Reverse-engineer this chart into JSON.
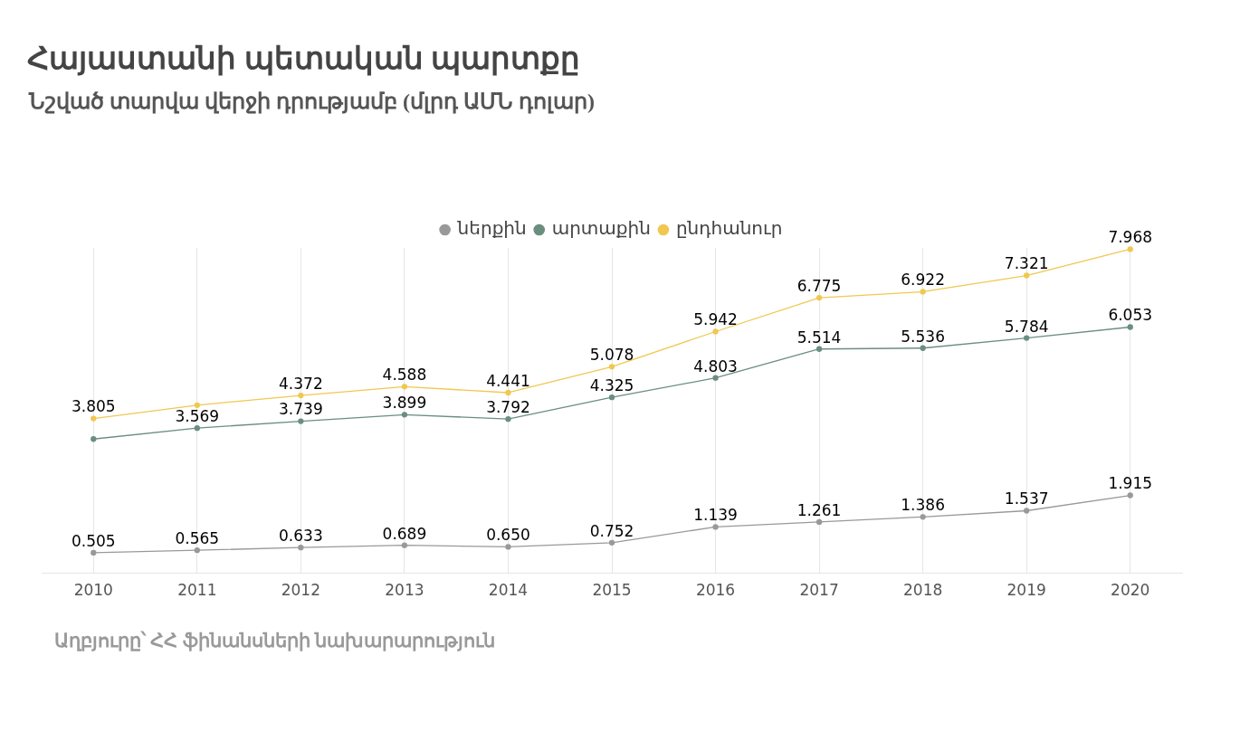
{
  "chart_data": {
    "type": "line",
    "title": "Հայաստանի պետական պարտքը",
    "subtitle": "Նշված տարվա վերջի դրությամբ  (մլրդ ԱՄՆ դոլար)",
    "annotations": [
      "Աղբյուրը՝ ՀՀ ֆինանսների նախարարություն"
    ],
    "categories": [
      "2010",
      "2011",
      "2012",
      "2013",
      "2014",
      "2015",
      "2016",
      "2017",
      "2018",
      "2019",
      "2020"
    ],
    "series": [
      {
        "name": "ներքին",
        "color": "#999999",
        "values": [
          0.505,
          0.565,
          0.633,
          0.689,
          0.65,
          0.752,
          1.139,
          1.261,
          1.386,
          1.537,
          1.915
        ],
        "value_labels": [
          "0.505",
          "0.565",
          "0.633",
          "0.689",
          "0.650",
          "0.752",
          "1.139",
          "1.261",
          "1.386",
          "1.537",
          "1.915"
        ]
      },
      {
        "name": "արտաքին",
        "color": "#6b8e7f",
        "values": [
          3.3,
          3.569,
          3.739,
          3.899,
          3.792,
          4.325,
          4.803,
          5.514,
          5.536,
          5.784,
          6.053
        ],
        "value_labels": [
          null,
          "3.569",
          "3.739",
          "3.899",
          "3.792",
          "4.325",
          "4.803",
          "5.514",
          "5.536",
          "5.784",
          "6.053"
        ]
      },
      {
        "name": "ընդհանուր",
        "color": "#f0c850",
        "values": [
          3.805,
          4.134,
          4.372,
          4.588,
          4.441,
          5.078,
          5.942,
          6.775,
          6.922,
          7.321,
          7.968
        ],
        "value_labels": [
          "3.805",
          null,
          "4.372",
          "4.588",
          "4.441",
          "5.078",
          "5.942",
          "6.775",
          "6.922",
          "7.321",
          "7.968"
        ]
      }
    ],
    "grid": "x",
    "legend": "top",
    "marker": "circle",
    "line_style": "solid"
  }
}
